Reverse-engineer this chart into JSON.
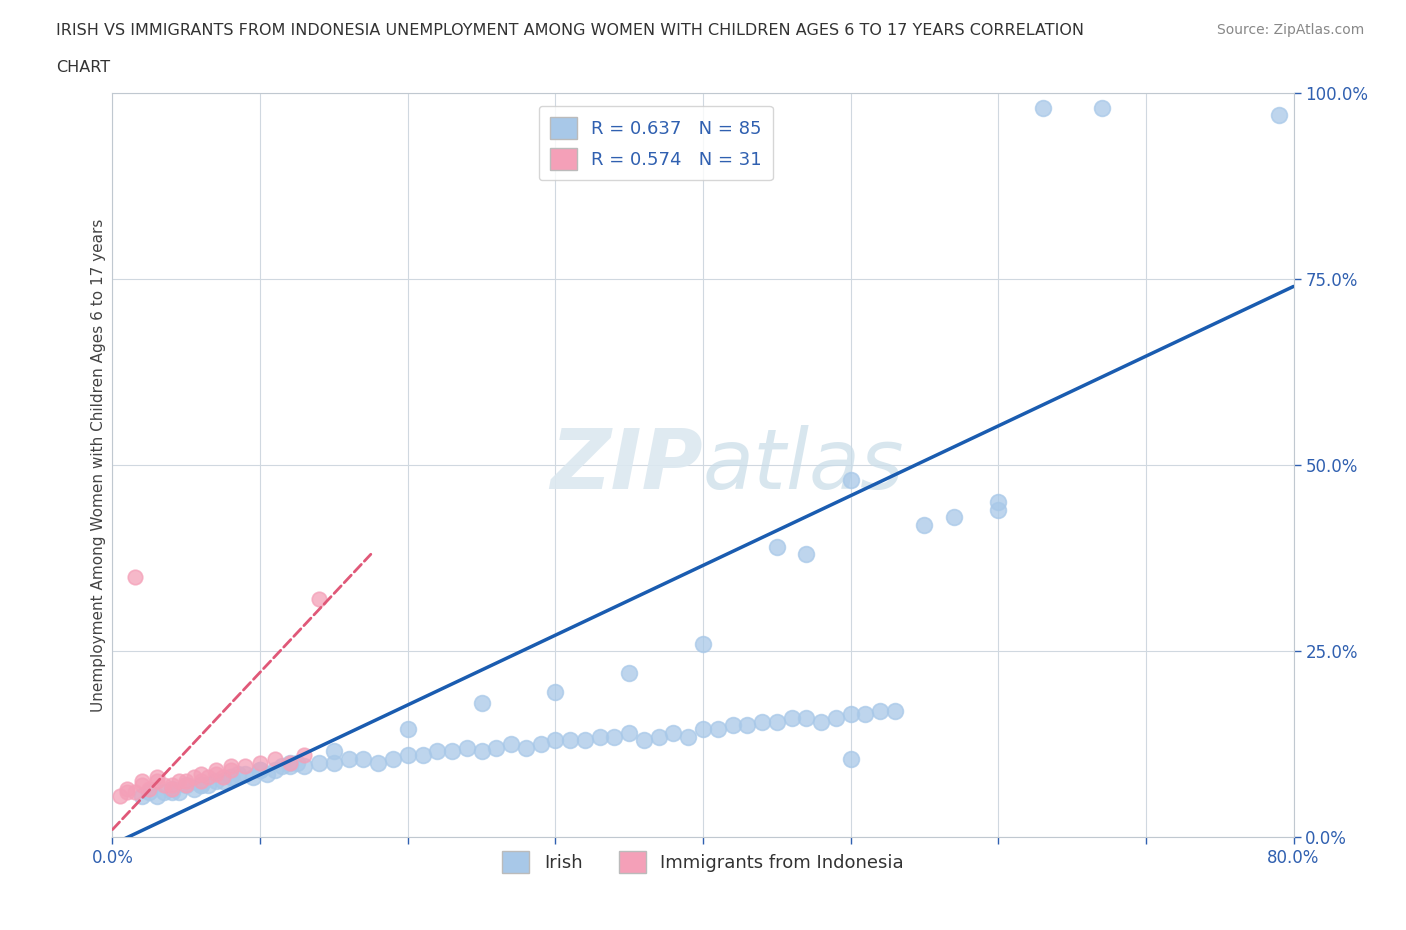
{
  "title_line1": "IRISH VS IMMIGRANTS FROM INDONESIA UNEMPLOYMENT AMONG WOMEN WITH CHILDREN AGES 6 TO 17 YEARS CORRELATION",
  "title_line2": "CHART",
  "source": "Source: ZipAtlas.com",
  "ylabel": "Unemployment Among Women with Children Ages 6 to 17 years",
  "xlim": [
    0.0,
    0.8
  ],
  "ylim": [
    0.0,
    1.0
  ],
  "xticks": [
    0.0,
    0.1,
    0.2,
    0.3,
    0.4,
    0.5,
    0.6,
    0.7,
    0.8
  ],
  "yticks": [
    0.0,
    0.25,
    0.5,
    0.75,
    1.0
  ],
  "yticklabels": [
    "0.0%",
    "25.0%",
    "50.0%",
    "75.0%",
    "100.0%"
  ],
  "irish_R": 0.637,
  "irish_N": 85,
  "indonesia_R": 0.574,
  "indonesia_N": 31,
  "irish_color": "#a8c8e8",
  "indonesia_color": "#f4a0b8",
  "irish_line_color": "#1a5cb0",
  "indonesia_line_color": "#e05878",
  "watermark_color": "#dce8f0",
  "background_color": "#ffffff",
  "irish_x": [
    0.02,
    0.025,
    0.03,
    0.035,
    0.04,
    0.045,
    0.05,
    0.055,
    0.06,
    0.065,
    0.07,
    0.075,
    0.08,
    0.085,
    0.09,
    0.095,
    0.1,
    0.105,
    0.11,
    0.115,
    0.12,
    0.125,
    0.13,
    0.14,
    0.15,
    0.16,
    0.17,
    0.18,
    0.19,
    0.2,
    0.21,
    0.22,
    0.23,
    0.24,
    0.25,
    0.26,
    0.27,
    0.28,
    0.29,
    0.3,
    0.31,
    0.32,
    0.33,
    0.34,
    0.35,
    0.36,
    0.37,
    0.38,
    0.39,
    0.4,
    0.41,
    0.42,
    0.43,
    0.44,
    0.45,
    0.46,
    0.47,
    0.48,
    0.49,
    0.5,
    0.51,
    0.52,
    0.53,
    0.47,
    0.5,
    0.55,
    0.57,
    0.6,
    0.6,
    0.63,
    0.67,
    0.79,
    0.35,
    0.4,
    0.45,
    0.3,
    0.25,
    0.2,
    0.15,
    0.1,
    0.08,
    0.06,
    0.04,
    0.12,
    0.5
  ],
  "irish_y": [
    0.055,
    0.06,
    0.055,
    0.06,
    0.065,
    0.06,
    0.07,
    0.065,
    0.07,
    0.07,
    0.075,
    0.075,
    0.08,
    0.085,
    0.085,
    0.08,
    0.09,
    0.085,
    0.09,
    0.095,
    0.095,
    0.1,
    0.095,
    0.1,
    0.1,
    0.105,
    0.105,
    0.1,
    0.105,
    0.11,
    0.11,
    0.115,
    0.115,
    0.12,
    0.115,
    0.12,
    0.125,
    0.12,
    0.125,
    0.13,
    0.13,
    0.13,
    0.135,
    0.135,
    0.14,
    0.13,
    0.135,
    0.14,
    0.135,
    0.145,
    0.145,
    0.15,
    0.15,
    0.155,
    0.155,
    0.16,
    0.16,
    0.155,
    0.16,
    0.165,
    0.165,
    0.17,
    0.17,
    0.38,
    0.48,
    0.42,
    0.43,
    0.44,
    0.45,
    0.98,
    0.98,
    0.97,
    0.22,
    0.26,
    0.39,
    0.195,
    0.18,
    0.145,
    0.115,
    0.09,
    0.08,
    0.07,
    0.06,
    0.1,
    0.105
  ],
  "indonesia_x": [
    0.005,
    0.01,
    0.015,
    0.02,
    0.025,
    0.03,
    0.035,
    0.04,
    0.045,
    0.05,
    0.055,
    0.06,
    0.065,
    0.07,
    0.075,
    0.08,
    0.01,
    0.02,
    0.03,
    0.04,
    0.05,
    0.06,
    0.07,
    0.08,
    0.09,
    0.1,
    0.11,
    0.12,
    0.13,
    0.14,
    0.015
  ],
  "indonesia_y": [
    0.055,
    0.065,
    0.06,
    0.07,
    0.065,
    0.075,
    0.07,
    0.065,
    0.075,
    0.07,
    0.08,
    0.075,
    0.08,
    0.085,
    0.08,
    0.09,
    0.06,
    0.075,
    0.08,
    0.07,
    0.075,
    0.085,
    0.09,
    0.095,
    0.095,
    0.1,
    0.105,
    0.1,
    0.11,
    0.32,
    0.35
  ],
  "irish_line_x": [
    0.0,
    0.8
  ],
  "irish_line_y": [
    -0.01,
    0.74
  ],
  "indo_line_x": [
    0.0,
    0.175
  ],
  "indo_line_y": [
    0.01,
    0.38
  ]
}
